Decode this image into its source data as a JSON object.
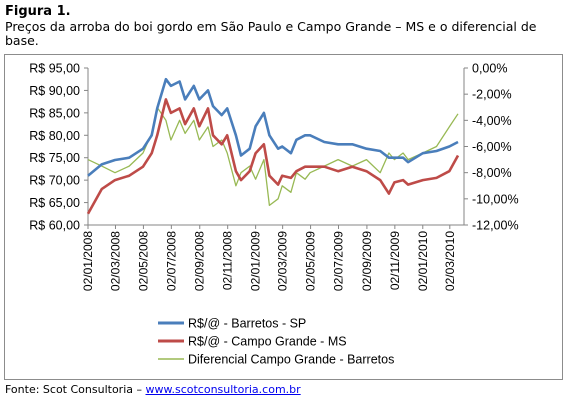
{
  "figure": {
    "label": "Figura 1.",
    "caption": "Preços da arroba do boi gordo em São Paulo e Campo Grande – MS e o diferencial de base.",
    "source_prefix": "Fonte: Scot Consultoria – ",
    "source_link": "www.scotconsultoria.com.br"
  },
  "chart_data": {
    "type": "line",
    "xlabel": "",
    "ylabel": "",
    "x_dates": [
      "2008-01-02",
      "2008-02-01",
      "2008-03-01",
      "2008-04-01",
      "2008-05-01",
      "2008-05-20",
      "2008-06-01",
      "2008-06-20",
      "2008-07-01",
      "2008-07-20",
      "2008-08-01",
      "2008-08-20",
      "2008-09-01",
      "2008-09-20",
      "2008-10-01",
      "2008-10-20",
      "2008-11-01",
      "2008-11-20",
      "2008-12-01",
      "2008-12-20",
      "2009-01-02",
      "2009-01-20",
      "2009-02-01",
      "2009-02-20",
      "2009-03-01",
      "2009-03-20",
      "2009-04-01",
      "2009-04-20",
      "2009-05-01",
      "2009-06-01",
      "2009-07-01",
      "2009-08-01",
      "2009-09-01",
      "2009-10-01",
      "2009-10-20",
      "2009-11-01",
      "2009-11-20",
      "2009-12-01",
      "2010-01-02",
      "2010-02-01",
      "2010-03-01",
      "2010-03-20"
    ],
    "x_tick_labels": [
      "02/01/2008",
      "02/03/2008",
      "02/05/2008",
      "02/07/2008",
      "02/09/2008",
      "02/11/2008",
      "02/01/2009",
      "02/03/2009",
      "02/05/2009",
      "02/07/2009",
      "02/09/2009",
      "02/11/2009",
      "02/01/2010",
      "02/03/2010"
    ],
    "x_tick_dates": [
      "2008-01-02",
      "2008-03-02",
      "2008-05-02",
      "2008-07-02",
      "2008-09-02",
      "2008-11-02",
      "2009-01-02",
      "2009-03-02",
      "2009-05-02",
      "2009-07-02",
      "2009-09-02",
      "2009-11-02",
      "2010-01-02",
      "2010-03-02"
    ],
    "x_range": [
      "2008-01-02",
      "2010-04-02"
    ],
    "y_left": {
      "range": [
        60,
        95
      ],
      "ticks": [
        60,
        65,
        70,
        75,
        80,
        85,
        90,
        95
      ],
      "tick_labels": [
        "R$ 60,00",
        "R$ 65,00",
        "R$ 70,00",
        "R$ 75,00",
        "R$ 80,00",
        "R$ 85,00",
        "R$ 90,00",
        "R$ 95,00"
      ]
    },
    "y_right": {
      "range": [
        -12,
        0
      ],
      "ticks": [
        0,
        -2,
        -4,
        -6,
        -8,
        -10,
        -12
      ],
      "tick_labels": [
        "0,00%",
        "-2,00%",
        "-4,00%",
        "-6,00%",
        "-8,00%",
        "-10,00%",
        "-12,00%"
      ]
    },
    "grid": false,
    "legend_position": "bottom",
    "series": [
      {
        "name": "R$/@ - Barretos - SP",
        "axis": "left",
        "color": "#4a7ebb",
        "values": [
          71.0,
          73.5,
          74.5,
          75.0,
          77.0,
          80.0,
          86.0,
          92.5,
          91.0,
          92.0,
          88.0,
          91.0,
          88.0,
          90.0,
          86.5,
          84.5,
          86.0,
          80.0,
          75.5,
          77.0,
          82.0,
          85.0,
          80.0,
          77.0,
          77.5,
          76.0,
          79.0,
          80.0,
          80.0,
          78.5,
          78.0,
          78.0,
          77.0,
          76.5,
          75.0,
          75.0,
          75.0,
          74.0,
          76.0,
          76.5,
          77.5,
          78.5
        ]
      },
      {
        "name": "R$/@ - Campo Grande - MS",
        "axis": "left",
        "color": "#be4b48",
        "values": [
          62.5,
          68.0,
          70.0,
          71.0,
          73.0,
          76.0,
          80.0,
          88.0,
          85.0,
          86.0,
          82.5,
          86.0,
          82.0,
          86.0,
          80.0,
          78.0,
          80.0,
          72.0,
          70.0,
          72.0,
          76.0,
          78.0,
          71.0,
          69.0,
          71.0,
          70.5,
          72.0,
          73.0,
          73.0,
          73.0,
          72.0,
          73.0,
          72.0,
          70.0,
          67.0,
          69.5,
          70.0,
          69.0,
          70.0,
          70.5,
          72.0,
          75.5
        ]
      },
      {
        "name": "Diferencial Campo Grande - Barretos",
        "axis": "right",
        "color": "#98b954",
        "values": [
          -7.0,
          -7.5,
          -8.0,
          -7.5,
          -6.5,
          -5.0,
          -3.0,
          -4.0,
          -5.5,
          -4.0,
          -5.0,
          -4.0,
          -5.5,
          -4.5,
          -6.0,
          -5.5,
          -6.5,
          -9.0,
          -8.0,
          -7.5,
          -8.5,
          -7.0,
          -10.5,
          -10.0,
          -9.0,
          -9.5,
          -8.0,
          -8.5,
          -8.0,
          -7.5,
          -7.0,
          -7.5,
          -7.0,
          -8.0,
          -6.5,
          -7.0,
          -6.5,
          -7.0,
          -6.5,
          -6.0,
          -4.5,
          -3.5
        ]
      }
    ]
  }
}
